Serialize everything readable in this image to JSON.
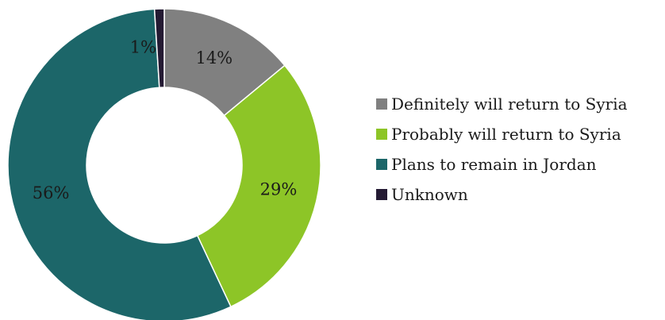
{
  "chart_data": {
    "type": "pie",
    "donut": true,
    "title": "",
    "legend_position": "right",
    "slices": [
      {
        "label": "Definitely will return to Syria",
        "value": 14,
        "display": "14%",
        "color": "#808080"
      },
      {
        "label": "Probably will return to Syria",
        "value": 29,
        "display": "29%",
        "color": "#8dc527"
      },
      {
        "label": "Plans to remain in Jordan",
        "value": 56,
        "display": "56%",
        "color": "#1c6669"
      },
      {
        "label": "Unknown",
        "value": 1,
        "display": "1%",
        "color": "#241a33"
      }
    ]
  }
}
